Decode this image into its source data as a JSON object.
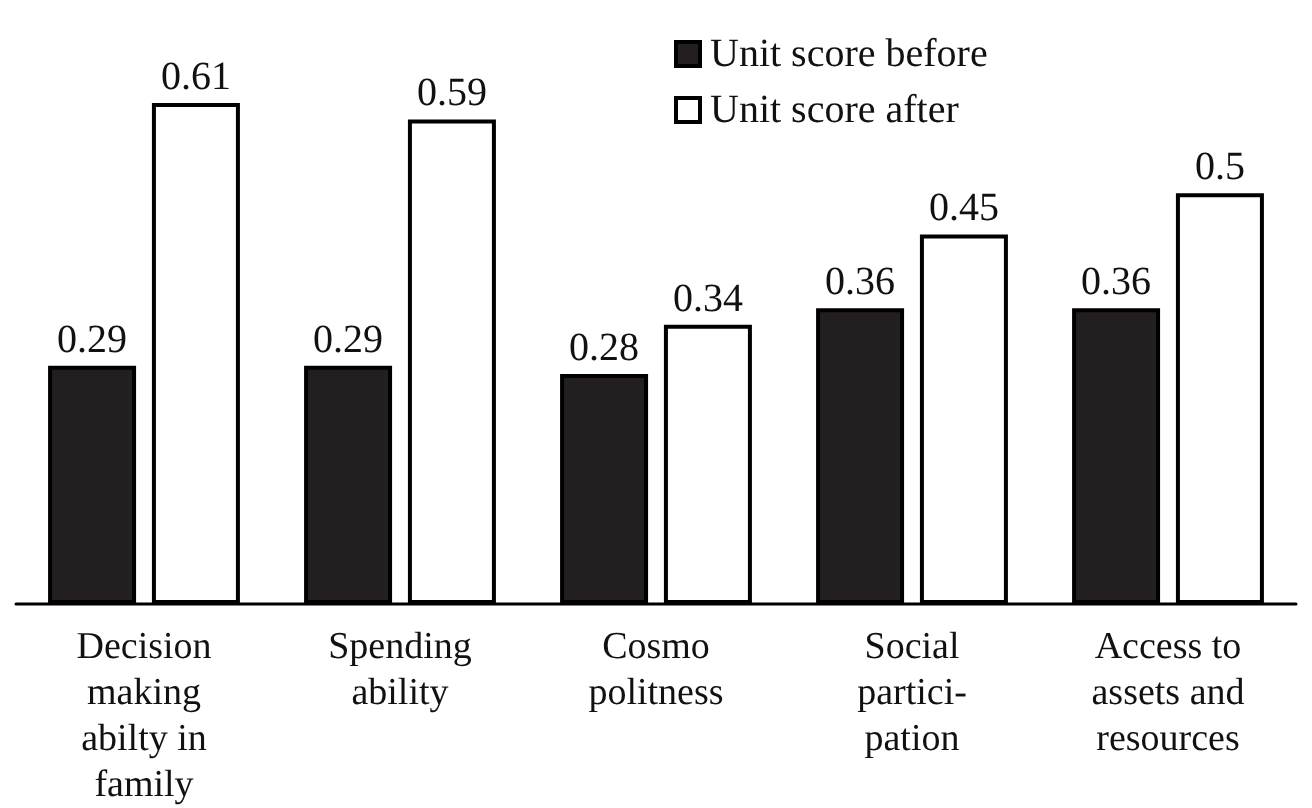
{
  "chart_data": {
    "type": "bar",
    "categories": [
      "Decision\nmaking\nabilty in\nfamily",
      "Spending\nability",
      "Cosmo\npolitness",
      "Social\npartici-\npation",
      "Access to\nassets and\nresources"
    ],
    "series": [
      {
        "name": "Unit score before",
        "color": "#231f20",
        "values": [
          0.29,
          0.29,
          0.28,
          0.36,
          0.36
        ]
      },
      {
        "name": "Unit score after",
        "color": "#ffffff",
        "values": [
          0.61,
          0.59,
          0.34,
          0.45,
          0.5
        ]
      }
    ],
    "data_labels": true,
    "legend": "top",
    "grid": false
  }
}
